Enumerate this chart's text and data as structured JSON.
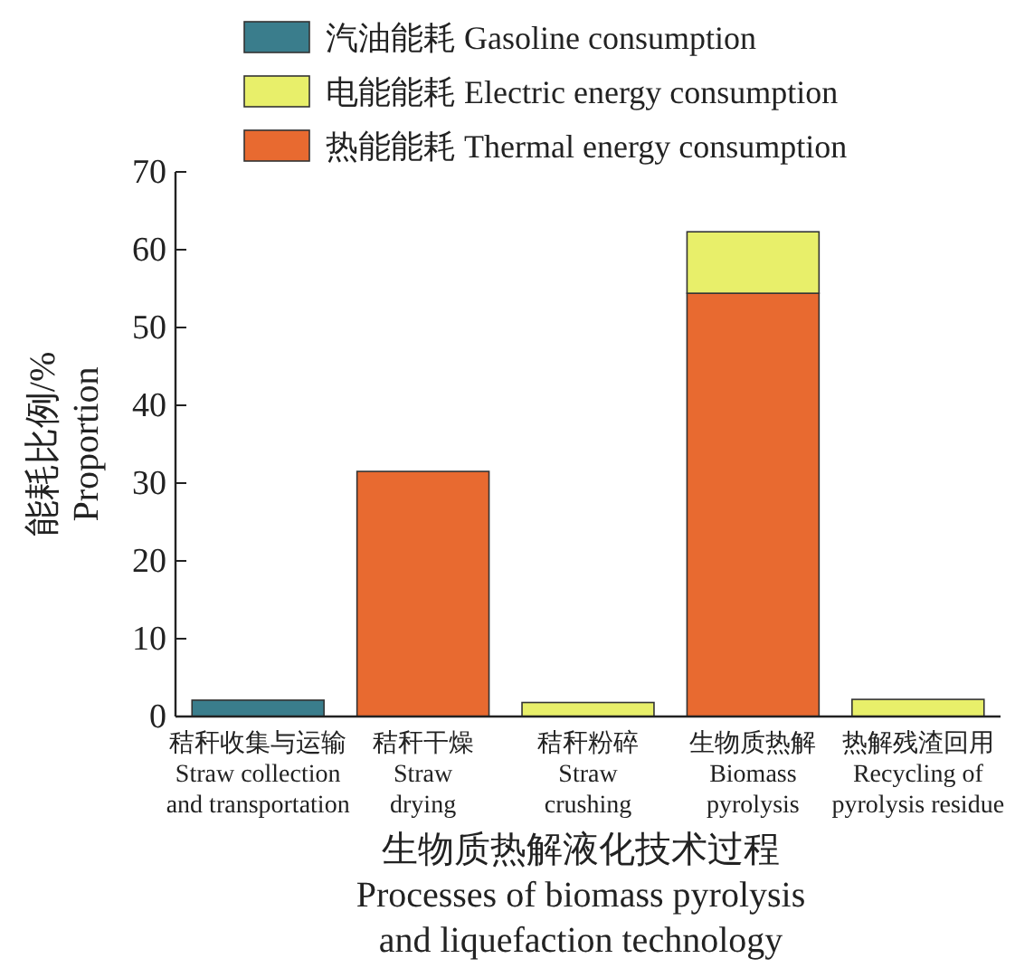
{
  "chart_data": {
    "type": "bar",
    "stacked": true,
    "xlabel": "生物质热解液化技术过程\nProcesses of biomass pyrolysis\nand liquefaction technology",
    "ylabel": "能耗比例/%\nProportion",
    "categories": [
      "秸秆收集与运输\nStraw collection\nand transportation",
      "秸秆干燥\nStraw\ndrying",
      "秸秆粉碎\nStraw\ncrushing",
      "生物质热解\nBiomass\npyrolysis",
      "热解残渣回用\nRecycling of\npyrolysis residue"
    ],
    "series": [
      {
        "name": "热能能耗 Thermal energy consumption",
        "color": "#e86a30",
        "values": [
          null,
          31.5,
          null,
          54.4,
          null
        ]
      },
      {
        "name": "电能能耗 Electric energy consumption",
        "color": "#e8ef6a",
        "values": [
          null,
          null,
          1.8,
          7.9,
          2.2
        ]
      },
      {
        "name": "汽油能耗 Gasoline consumption",
        "color": "#3a7d8c",
        "values": [
          2.1,
          null,
          null,
          null,
          null
        ]
      }
    ],
    "ylim": [
      0,
      70
    ],
    "yticks": [
      0,
      10,
      20,
      30,
      40,
      50,
      60,
      70
    ],
    "grid": false,
    "legend": "top"
  }
}
